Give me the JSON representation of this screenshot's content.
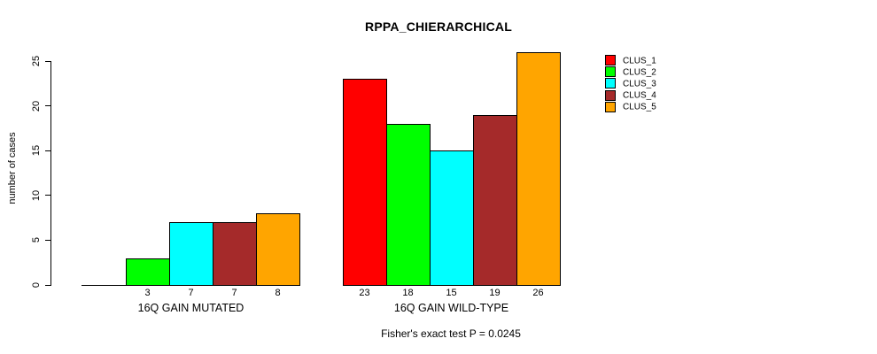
{
  "chart_data": {
    "type": "bar",
    "title": "RPPA_CHIERARCHICAL",
    "ylabel": "number of cases",
    "xlabel": "",
    "ylim": [
      0,
      26
    ],
    "yticks": [
      0,
      5,
      10,
      15,
      20,
      25
    ],
    "grid": false,
    "legend_position": "right-top",
    "bar_value_labels": true,
    "zero_bars_drawn_flat_without_label": true,
    "categories": [
      "16Q GAIN MUTATED",
      "16Q GAIN WILD-TYPE"
    ],
    "series": [
      {
        "name": "CLUS_1",
        "color": "#ff0000",
        "values": [
          0,
          23
        ]
      },
      {
        "name": "CLUS_2",
        "color": "#00ff00",
        "values": [
          3,
          18
        ]
      },
      {
        "name": "CLUS_3",
        "color": "#00ffff",
        "values": [
          7,
          15
        ]
      },
      {
        "name": "CLUS_4",
        "color": "#a52a2a",
        "values": [
          7,
          19
        ]
      },
      {
        "name": "CLUS_5",
        "color": "#ffa500",
        "values": [
          8,
          26
        ]
      }
    ],
    "annotation": "Fisher's exact test P = 0.0245"
  },
  "colors": {
    "foreground": "#000000",
    "background": "#ffffff"
  }
}
